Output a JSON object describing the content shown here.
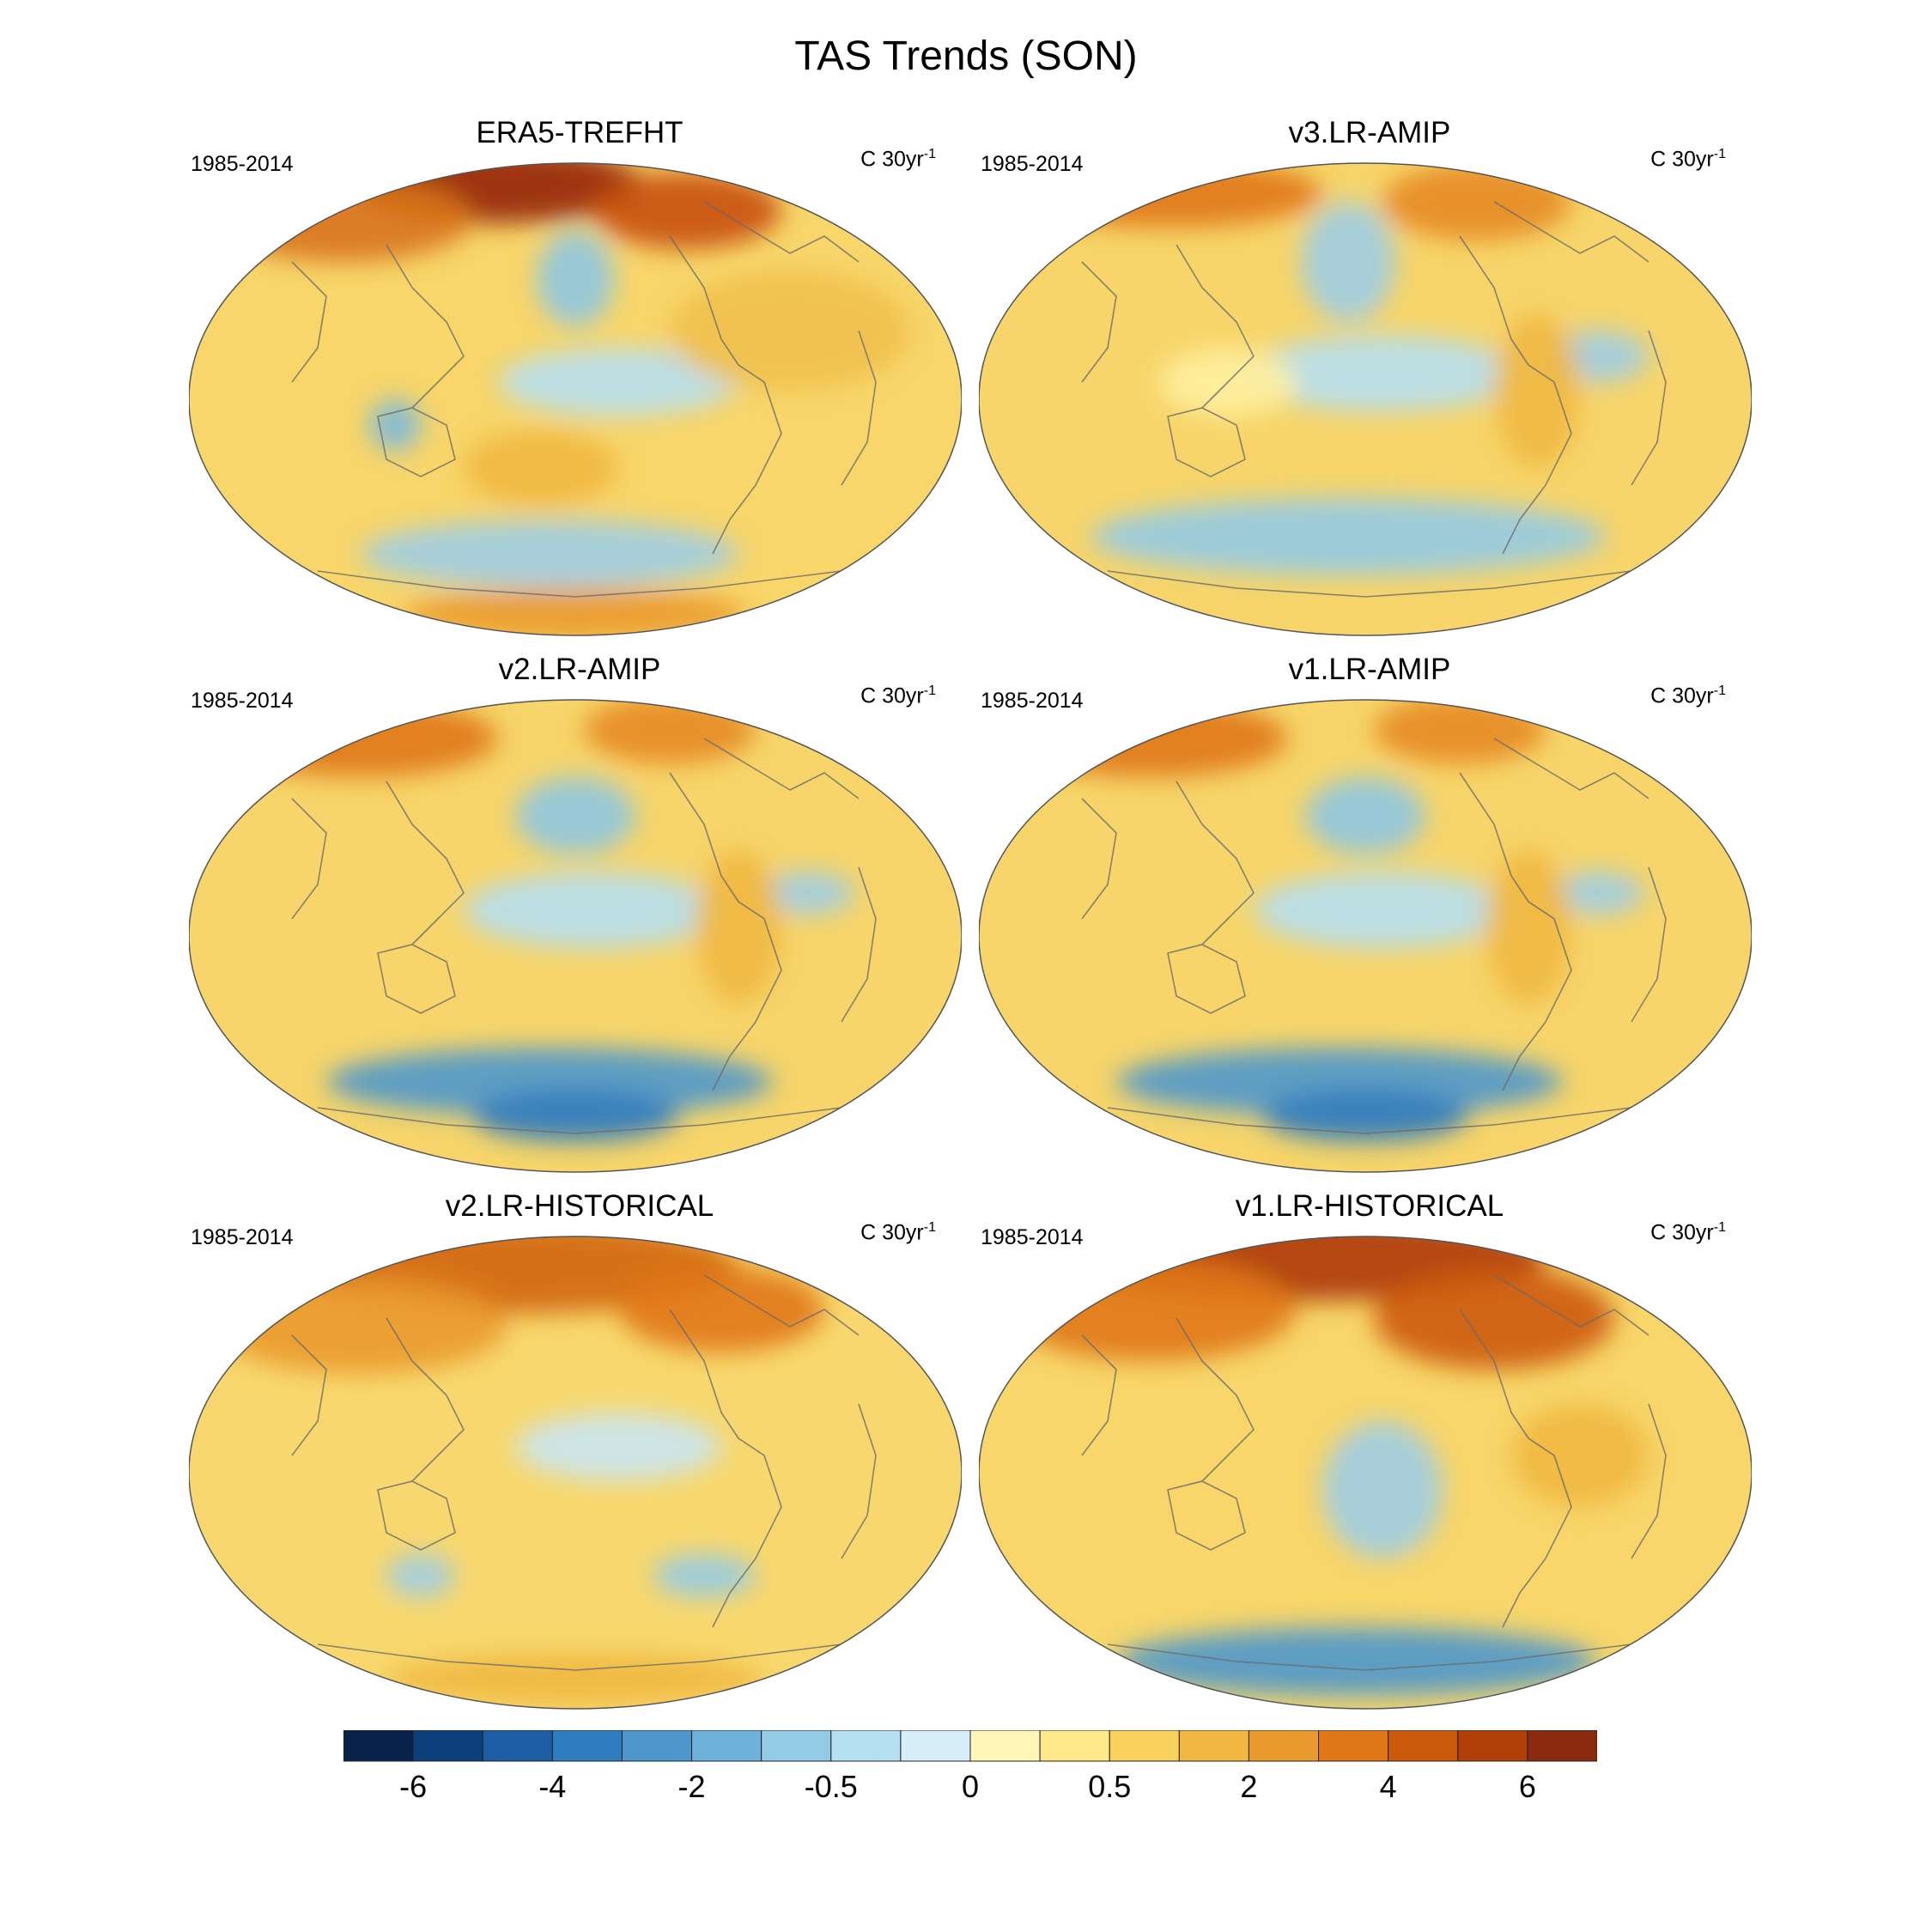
{
  "figure": {
    "title": "TAS Trends (SON)"
  },
  "panels": [
    {
      "title": "ERA5-TREFHT",
      "period": "1985-2014",
      "units_base": "C 30yr",
      "units_exp": "-1",
      "map_variant": "era5"
    },
    {
      "title": "v3.LR-AMIP",
      "period": "1985-2014",
      "units_base": "C 30yr",
      "units_exp": "-1",
      "map_variant": "amip"
    },
    {
      "title": "v2.LR-AMIP",
      "period": "1985-2014",
      "units_base": "C 30yr",
      "units_exp": "-1",
      "map_variant": "amip_south_cold"
    },
    {
      "title": "v1.LR-AMIP",
      "period": "1985-2014",
      "units_base": "C 30yr",
      "units_exp": "-1",
      "map_variant": "amip_south_cold"
    },
    {
      "title": "v2.LR-HISTORICAL",
      "period": "1985-2014",
      "units_base": "C 30yr",
      "units_exp": "-1",
      "map_variant": "hist"
    },
    {
      "title": "v1.LR-HISTORICAL",
      "period": "1985-2014",
      "units_base": "C 30yr",
      "units_exp": "-1",
      "map_variant": "hist_arctic_hot"
    }
  ],
  "colorbar": {
    "colors": [
      "#08224a",
      "#0d3f7a",
      "#1b5ea5",
      "#2f7bbf",
      "#4e97cc",
      "#6fb1da",
      "#93cbe5",
      "#b5def0",
      "#d5eef7",
      "#fff6b8",
      "#ffe88a",
      "#f8d15e",
      "#f0b840",
      "#ea9a2c",
      "#e07718",
      "#cc5a0c",
      "#b03f08",
      "#8a2a0e"
    ],
    "tick_labels": [
      "-6",
      "-4",
      "-2",
      "-0.5",
      "0",
      "0.5",
      "2",
      "4",
      "6"
    ]
  }
}
